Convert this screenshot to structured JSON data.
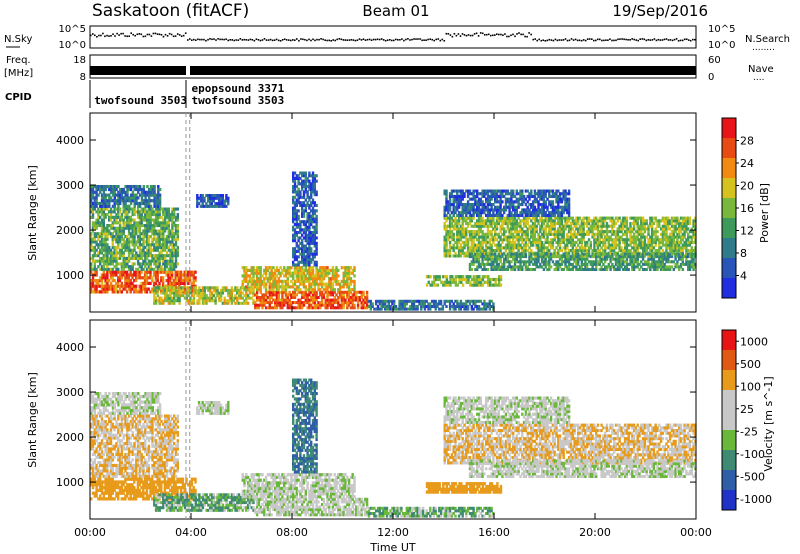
{
  "header": {
    "station": "Saskatoon (fitACF)",
    "beam": "Beam 01",
    "date": "19/Sep/2016"
  },
  "strip_labels": {
    "nsky": "N.Sky",
    "nsearch": "N.Search",
    "nsearch_dots": "........",
    "freq_line1": "Freq.",
    "freq_line2": "[MHz]",
    "nave": "Nave",
    "nave_dots": "....",
    "cpid": "CPID",
    "nsky_ticks": [
      "10^5",
      "10^0"
    ],
    "nsearch_ticks": [
      "10^5",
      "10^0"
    ],
    "freq_ticks": [
      "18",
      "8"
    ],
    "nave_ticks": [
      "60",
      "0"
    ]
  },
  "cpid_annotations": [
    {
      "text": "twofsound 3503",
      "time_h": 0.05,
      "row": 2
    },
    {
      "text": "epopsound 3371",
      "time_h": 3.9,
      "row": 1
    },
    {
      "text": "twofsound 3503",
      "time_h": 3.9,
      "row": 2
    }
  ],
  "colors": {
    "power_scale": [
      "#1f2ee0",
      "#2a55b8",
      "#2f7b8a",
      "#3e9a5a",
      "#79b83a",
      "#d6c21e",
      "#f08a10",
      "#e84a14",
      "#e8141a"
    ],
    "velocity_scale": [
      "#1f33c8",
      "#2f5ea8",
      "#3f8a72",
      "#6ab83a",
      "#c8c8c8",
      "#c8c8c8",
      "#e89a1a",
      "#e05a14",
      "#e81414"
    ]
  },
  "chart_data": [
    {
      "type": "heatmap",
      "title": "Power",
      "xlabel": "Time UT",
      "ylabel": "Slant Range [km]",
      "x_ticks": [
        "00:00",
        "04:00",
        "08:00",
        "12:00",
        "16:00",
        "20:00",
        "00:00"
      ],
      "xlim_hours": [
        0,
        24
      ],
      "ylim": [
        180,
        4600
      ],
      "y_ticks": [
        1000,
        2000,
        3000,
        4000
      ],
      "colorbar": {
        "label": "Power [dB]",
        "ticks": [
          4,
          8,
          12,
          16,
          20,
          24,
          28
        ],
        "range": [
          0,
          32
        ]
      },
      "regions": [
        {
          "t0": 0.0,
          "t1": 4.2,
          "r0": 600,
          "r1": 1100,
          "level": 26
        },
        {
          "t0": 0.0,
          "t1": 3.5,
          "r0": 1100,
          "r1": 2500,
          "level": 14
        },
        {
          "t0": 0.0,
          "t1": 2.8,
          "r0": 2500,
          "r1": 3000,
          "level": 8
        },
        {
          "t0": 2.5,
          "t1": 6.5,
          "r0": 350,
          "r1": 750,
          "level": 18
        },
        {
          "t0": 6.5,
          "t1": 11.0,
          "r0": 250,
          "r1": 650,
          "level": 26
        },
        {
          "t0": 6.0,
          "t1": 10.5,
          "r0": 650,
          "r1": 1200,
          "level": 20
        },
        {
          "t0": 4.2,
          "t1": 5.5,
          "r0": 2500,
          "r1": 2800,
          "level": 6
        },
        {
          "t0": 11.0,
          "t1": 16.0,
          "r0": 220,
          "r1": 450,
          "level": 8
        },
        {
          "t0": 13.3,
          "t1": 16.3,
          "r0": 750,
          "r1": 1000,
          "level": 16
        },
        {
          "t0": 14.0,
          "t1": 24.0,
          "r0": 1400,
          "r1": 2300,
          "level": 16
        },
        {
          "t0": 15.0,
          "t1": 24.0,
          "r0": 1100,
          "r1": 1500,
          "level": 12
        },
        {
          "t0": 14.0,
          "t1": 19.0,
          "r0": 2300,
          "r1": 2900,
          "level": 6
        },
        {
          "t0": 8.0,
          "t1": 9.0,
          "r0": 1200,
          "r1": 3300,
          "level": 6
        }
      ]
    },
    {
      "type": "heatmap",
      "title": "Velocity",
      "xlabel": "Time UT",
      "ylabel": "Slant Range [km]",
      "x_ticks": [
        "00:00",
        "04:00",
        "08:00",
        "12:00",
        "16:00",
        "20:00",
        "00:00"
      ],
      "xlim_hours": [
        0,
        24
      ],
      "ylim": [
        180,
        4600
      ],
      "y_ticks": [
        1000,
        2000,
        3000,
        4000
      ],
      "colorbar": {
        "label": "Velocity [m s^-1]",
        "ticks": [
          "1000",
          "500",
          "100",
          "25",
          "-25",
          "-100",
          "-500",
          "-1000"
        ]
      },
      "regions": [
        {
          "t0": 0.0,
          "t1": 4.2,
          "r0": 600,
          "r1": 1100,
          "level": -200
        },
        {
          "t0": 0.0,
          "t1": 3.5,
          "r0": 1100,
          "r1": 2500,
          "level": -60
        },
        {
          "t0": 0.0,
          "t1": 2.8,
          "r0": 2500,
          "r1": 3000,
          "level": 0
        },
        {
          "t0": 2.5,
          "t1": 6.5,
          "r0": 350,
          "r1": 750,
          "level": 60
        },
        {
          "t0": 6.5,
          "t1": 11.0,
          "r0": 250,
          "r1": 650,
          "level": 0
        },
        {
          "t0": 6.0,
          "t1": 10.5,
          "r0": 650,
          "r1": 1200,
          "level": 0
        },
        {
          "t0": 4.2,
          "t1": 5.5,
          "r0": 2500,
          "r1": 2800,
          "level": 0
        },
        {
          "t0": 11.0,
          "t1": 16.0,
          "r0": 220,
          "r1": 450,
          "level": 60
        },
        {
          "t0": 13.3,
          "t1": 16.3,
          "r0": 750,
          "r1": 1000,
          "level": -200
        },
        {
          "t0": 14.0,
          "t1": 24.0,
          "r0": 1400,
          "r1": 2300,
          "level": -60
        },
        {
          "t0": 15.0,
          "t1": 24.0,
          "r0": 1100,
          "r1": 1500,
          "level": 0
        },
        {
          "t0": 14.0,
          "t1": 19.0,
          "r0": 2300,
          "r1": 2900,
          "level": 0
        },
        {
          "t0": 8.0,
          "t1": 9.0,
          "r0": 1200,
          "r1": 3300,
          "level": 300
        }
      ]
    }
  ]
}
